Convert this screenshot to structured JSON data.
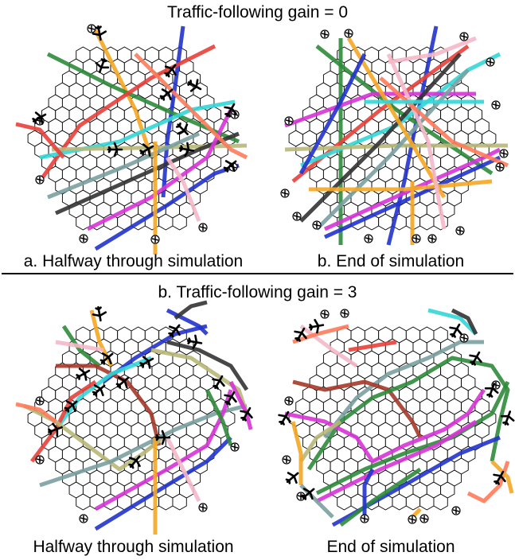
{
  "figure": {
    "top_title": "Traffic-following gain = 0",
    "bottom_title": "b. Traffic-following gain = 3",
    "top_left_caption": "a. Halfway through simulation",
    "top_right_caption": "b. End of simulation",
    "bottom_left_caption": "Halfway through simulation",
    "bottom_right_caption": "End of simulation"
  },
  "colors": {
    "grid_line": "#000000",
    "background": "#ffffff",
    "route_palette": [
      "#e8403a",
      "#f5a623",
      "#2e8b3a",
      "#2233cc",
      "#33d6d6",
      "#d633d6",
      "#f4b8c8",
      "#333333",
      "#7aa0a0",
      "#b8b878",
      "#a53a2a",
      "#ff7a5a"
    ]
  },
  "panels": [
    {
      "id": "top-left",
      "state": "halfway",
      "gain": 0
    },
    {
      "id": "top-right",
      "state": "end",
      "gain": 0
    },
    {
      "id": "bottom-left",
      "state": "halfway",
      "gain": 3
    },
    {
      "id": "bottom-right",
      "state": "end",
      "gain": 3
    }
  ]
}
